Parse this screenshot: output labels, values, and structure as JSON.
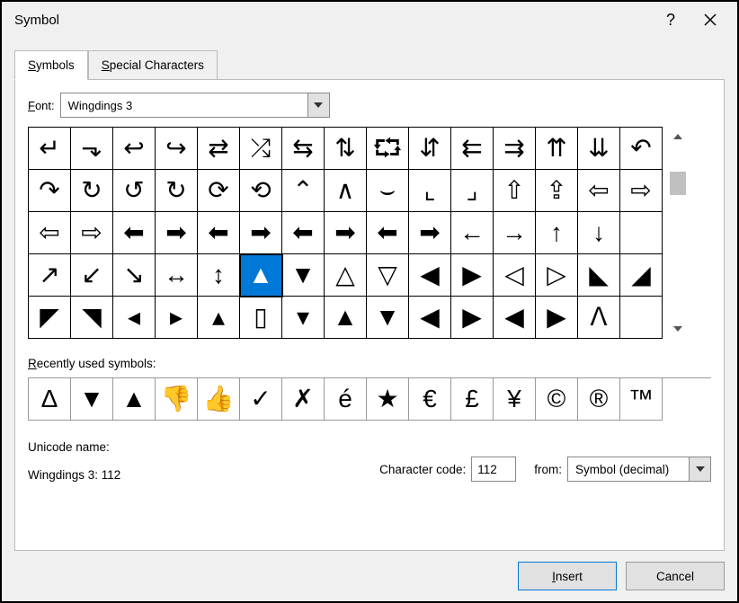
{
  "dialog": {
    "title": "Symbol",
    "help_tooltip": "Help",
    "close_tooltip": "Close"
  },
  "tabs": {
    "symbols_prefix": "S",
    "symbols_rest": "ymbols",
    "special_prefix": "S",
    "special_rest": "pecial Characters"
  },
  "font": {
    "label_prefix": "F",
    "label_rest": "ont:",
    "value": "Wingdings 3"
  },
  "grid": {
    "columns": 15,
    "rows": 5,
    "selected_index": 50,
    "symbols": [
      "↵",
      "⬎",
      "↩",
      "↪",
      "⇄",
      "⤮",
      "⇆",
      "⇅",
      "⮔",
      "⇵",
      "⇇",
      "⇉",
      "⇈",
      "⇊",
      "↶",
      "↷",
      "↻",
      "↺",
      "↻",
      "⟳",
      "⟲",
      "⌃",
      "∧",
      "⌣",
      "⌞",
      "⌟",
      "⇧",
      "⇪",
      "⇦",
      "⇨",
      "⇦",
      "⇨",
      "⬅",
      "➡",
      "⬅",
      "➡",
      "⬅",
      "➡",
      "⬅",
      "➡",
      "←",
      "→",
      "↑",
      "↓",
      "",
      "↗",
      "↙",
      "↘",
      "↔",
      "↕",
      "▲",
      "▼",
      "△",
      "▽",
      "◀",
      "▶",
      "◁",
      "▷",
      "◣",
      "◢",
      "◤",
      "◥",
      "◂",
      "▸",
      "▴",
      "▯",
      "▾",
      "▲",
      "▼",
      "◀",
      "▶",
      "◀",
      "▶",
      "ᐱ",
      ""
    ]
  },
  "recent": {
    "label_prefix": "R",
    "label_rest": "ecently used symbols:",
    "symbols": [
      "Δ",
      "▼",
      "▲",
      "👎",
      "👍",
      "✓",
      "✗",
      "é",
      "★",
      "€",
      "£",
      "¥",
      "©",
      "®",
      "™"
    ]
  },
  "meta": {
    "unicode_name_label": "Unicode name:",
    "unicode_name_value": "Wingdings 3: 112",
    "cc_prefix": "C",
    "cc_rest": "haracter code:",
    "cc_value": "112",
    "from_prefix": "",
    "from_label": "fro",
    "from_mid": "m",
    "from_rest": ":",
    "from_value": "Symbol (decimal)"
  },
  "buttons": {
    "insert_prefix": "I",
    "insert_rest": "nsert",
    "cancel": "Cancel"
  },
  "colors": {
    "selection_bg": "#0078d7",
    "border": "#000000",
    "panel_bg": "#ffffff",
    "dialog_bg": "#f0f0f0",
    "button_bg": "#e1e1e1"
  }
}
